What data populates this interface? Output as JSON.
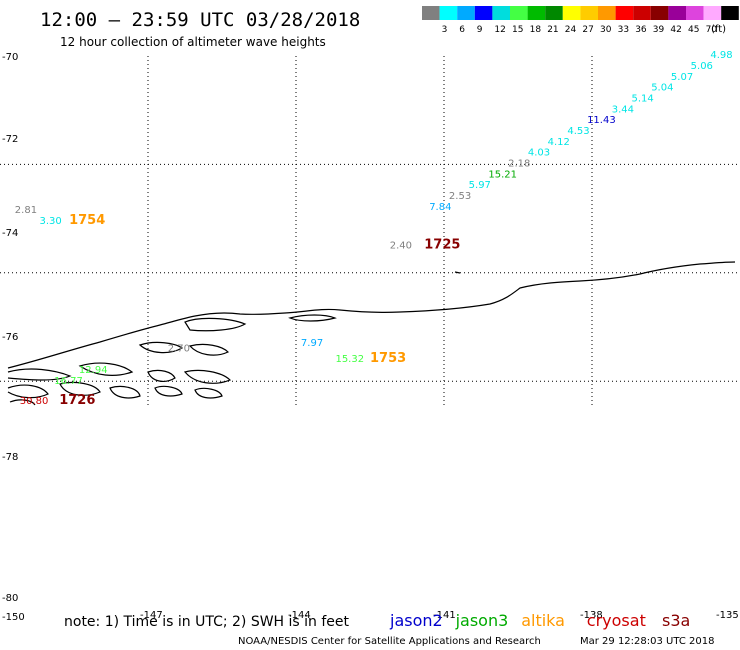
{
  "header": {
    "title": "12:00 – 23:59 UTC 03/28/2018",
    "subtitle": "12 hour collection of altimeter wave heights"
  },
  "legend": {
    "unit": "(ft)",
    "items": [
      {
        "label": "",
        "color": "#808080"
      },
      {
        "label": "3",
        "color": "#00ffff"
      },
      {
        "label": "6",
        "color": "#00aaff"
      },
      {
        "label": "9",
        "color": "#0000ff"
      },
      {
        "label": "12",
        "color": "#00dddd"
      },
      {
        "label": "15",
        "color": "#44ff44"
      },
      {
        "label": "18",
        "color": "#00bb00"
      },
      {
        "label": "21",
        "color": "#008800"
      },
      {
        "label": "24",
        "color": "#ffff00"
      },
      {
        "label": "27",
        "color": "#ffcc00"
      },
      {
        "label": "30",
        "color": "#ff9900"
      },
      {
        "label": "33",
        "color": "#ff0000"
      },
      {
        "label": "36",
        "color": "#cc0000"
      },
      {
        "label": "39",
        "color": "#880000"
      },
      {
        "label": "42",
        "color": "#990099"
      },
      {
        "label": "45",
        "color": "#dd44dd"
      },
      {
        "label": "70",
        "color": "#ffaaff"
      },
      {
        "label": "",
        "color": "#000000"
      }
    ]
  },
  "axes": {
    "lat_labels": [
      "-70",
      "-72",
      "-74",
      "-76",
      "-78",
      "-80"
    ],
    "lon_labels": [
      "-150",
      "-147",
      "-144",
      "-141",
      "-138",
      "-135"
    ]
  },
  "observations": [
    {
      "text": "4.98",
      "color": "#00e5e5",
      "lon": -135.6,
      "lat": -70.04
    },
    {
      "text": "5.06",
      "color": "#00e5e5",
      "lon": -136.0,
      "lat": -70.24
    },
    {
      "text": "5.07",
      "color": "#00e5e5",
      "lon": -136.4,
      "lat": -70.44
    },
    {
      "text": "5.04",
      "color": "#00e5e5",
      "lon": -136.8,
      "lat": -70.64
    },
    {
      "text": "5.14",
      "color": "#00e5e5",
      "lon": -137.2,
      "lat": -70.84
    },
    {
      "text": "3.44",
      "color": "#00e5e5",
      "lon": -137.6,
      "lat": -71.04
    },
    {
      "text": "11.43",
      "color": "#0000cc",
      "lon": -138.1,
      "lat": -71.24
    },
    {
      "text": "4.53",
      "color": "#00e5e5",
      "lon": -138.5,
      "lat": -71.44
    },
    {
      "text": "4.12",
      "color": "#00e5e5",
      "lon": -138.9,
      "lat": -71.64
    },
    {
      "text": "4.03",
      "color": "#00e5e5",
      "lon": -139.3,
      "lat": -71.84
    },
    {
      "text": "2.18",
      "color": "#808080",
      "lon": -139.7,
      "lat": -72.04
    },
    {
      "text": "15.21",
      "color": "#00aa00",
      "lon": -140.1,
      "lat": -72.24
    },
    {
      "text": "5.97",
      "color": "#00e5e5",
      "lon": -140.5,
      "lat": -72.44
    },
    {
      "text": "2.53",
      "color": "#808080",
      "lon": -140.9,
      "lat": -72.64
    },
    {
      "text": "7.84",
      "color": "#00aaff",
      "lon": -141.3,
      "lat": -72.84
    },
    {
      "text": "2.81",
      "color": "#808080",
      "lon": -149.7,
      "lat": -72.9
    },
    {
      "text": "3.30",
      "color": "#00e5e5",
      "lon": -149.2,
      "lat": -73.1
    },
    {
      "text": "1754",
      "color": "#ff9900",
      "lon": -148.6,
      "lat": -73.1,
      "bold": true
    },
    {
      "text": "2.40",
      "color": "#808080",
      "lon": -142.1,
      "lat": -73.55
    },
    {
      "text": "1725",
      "color": "#880000",
      "lon": -141.4,
      "lat": -73.55,
      "bold": true
    },
    {
      "text": "7.97",
      "color": "#00aaff",
      "lon": -143.9,
      "lat": -75.35
    },
    {
      "text": "15.32",
      "color": "#44ff44",
      "lon": -143.2,
      "lat": -75.65
    },
    {
      "text": "1753",
      "color": "#ff9900",
      "lon": -142.5,
      "lat": -75.65,
      "bold": true
    },
    {
      "text": "2.70",
      "color": "#808080",
      "lon": -146.6,
      "lat": -75.45
    },
    {
      "text": "12.94",
      "color": "#44ff44",
      "lon": -148.4,
      "lat": -75.85
    },
    {
      "text": "16.77",
      "color": "#44ff44",
      "lon": -148.9,
      "lat": -76.05
    },
    {
      "text": "30.80",
      "color": "#cc0000",
      "lon": -149.6,
      "lat": -76.42
    },
    {
      "text": "1726",
      "color": "#880000",
      "lon": -148.8,
      "lat": -76.42,
      "bold": true
    }
  ],
  "footer": {
    "note": "note: 1) Time is in UTC; 2) SWH is in feet",
    "satellites": [
      {
        "name": "jason2",
        "color": "#0000cc"
      },
      {
        "name": "jason3",
        "color": "#00aa00"
      },
      {
        "name": "altika",
        "color": "#ff9900"
      },
      {
        "name": "cryosat",
        "color": "#cc0000"
      },
      {
        "name": "s3a",
        "color": "#880000"
      }
    ],
    "credit": "NOAA/NESDIS Center for Satellite Applications and Research",
    "timestamp": "Mar 29 12:28:03 UTC 2018"
  }
}
